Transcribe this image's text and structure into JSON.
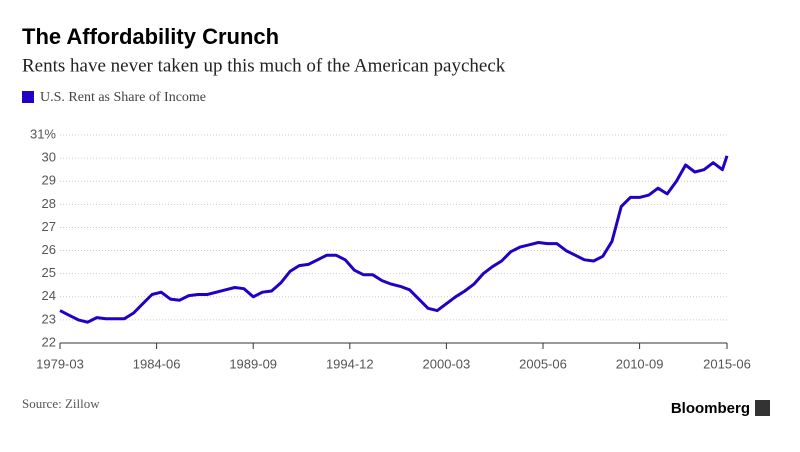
{
  "chart_data": {
    "type": "line",
    "title": "The Affordability Crunch",
    "subtitle": "Rents have never taken up this much of the American paycheck",
    "source": "Source: Zillow",
    "brand": "Bloomberg",
    "x": [
      "1979-03",
      "1979-09",
      "1980-03",
      "1980-09",
      "1981-03",
      "1981-09",
      "1982-03",
      "1982-09",
      "1983-03",
      "1983-09",
      "1984-03",
      "1984-09",
      "1985-03",
      "1985-09",
      "1986-03",
      "1986-09",
      "1987-03",
      "1987-09",
      "1988-03",
      "1988-09",
      "1989-03",
      "1989-09",
      "1990-03",
      "1990-09",
      "1991-03",
      "1991-09",
      "1992-03",
      "1992-09",
      "1993-03",
      "1993-09",
      "1994-03",
      "1994-09",
      "1995-03",
      "1995-09",
      "1996-03",
      "1996-09",
      "1997-03",
      "1997-09",
      "1998-03",
      "1998-09",
      "1999-03",
      "1999-09",
      "2000-03",
      "2000-09",
      "2001-03",
      "2001-09",
      "2002-03",
      "2002-09",
      "2003-03",
      "2003-09",
      "2004-03",
      "2004-09",
      "2005-03",
      "2005-09",
      "2006-03",
      "2006-09",
      "2007-03",
      "2007-09",
      "2008-03",
      "2008-09",
      "2009-03",
      "2009-09",
      "2010-03",
      "2010-09",
      "2011-03",
      "2011-09",
      "2012-03",
      "2012-09",
      "2013-03",
      "2013-09",
      "2014-03",
      "2014-09",
      "2015-03",
      "2015-06"
    ],
    "series": [
      {
        "name": "U.S. Rent as Share of Income",
        "color": "#2200c4",
        "values": [
          23.4,
          23.2,
          23.0,
          22.9,
          23.1,
          23.05,
          23.05,
          23.05,
          23.3,
          23.7,
          24.1,
          24.2,
          23.9,
          23.85,
          24.05,
          24.1,
          24.1,
          24.2,
          24.3,
          24.4,
          24.35,
          24.0,
          24.2,
          24.25,
          24.6,
          25.1,
          25.35,
          25.4,
          25.6,
          25.8,
          25.8,
          25.6,
          25.15,
          24.95,
          24.95,
          24.7,
          24.55,
          24.45,
          24.3,
          23.9,
          23.5,
          23.4,
          23.7,
          24.0,
          24.25,
          24.55,
          25.0,
          25.3,
          25.55,
          25.95,
          26.15,
          26.25,
          26.35,
          26.3,
          26.3,
          26.0,
          25.8,
          25.6,
          25.55,
          25.75,
          26.4,
          27.9,
          28.3,
          28.3,
          28.4,
          28.7,
          28.45,
          29.0,
          29.7,
          29.4,
          29.5,
          29.8,
          29.5,
          30.1
        ]
      }
    ],
    "ylim": [
      22,
      31
    ],
    "yticks": [
      22,
      23,
      24,
      25,
      26,
      27,
      28,
      29,
      30,
      {
        "value": 31,
        "label": "31%"
      }
    ],
    "xticks": [
      "1979-03",
      "1984-06",
      "1989-09",
      "1994-12",
      "2000-03",
      "2005-06",
      "2010-09",
      "2015-06"
    ],
    "grid": true
  }
}
